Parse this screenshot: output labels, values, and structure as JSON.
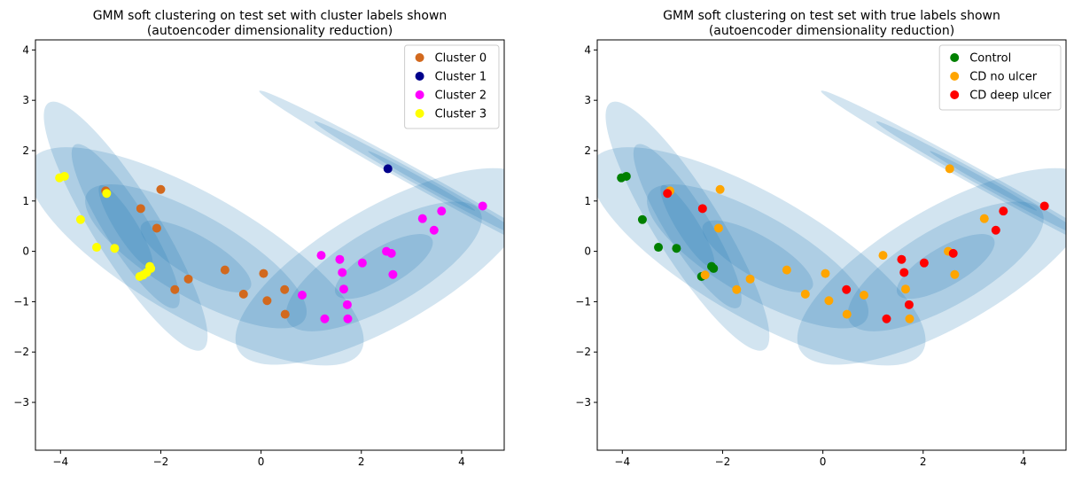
{
  "chart_data": [
    {
      "type": "scatter",
      "title": "GMM soft clustering on test set with cluster labels shown",
      "subtitle": "(autoencoder dimensionality reduction)",
      "xlabel": "",
      "ylabel": "",
      "xlim": [
        -4.5,
        4.85
      ],
      "ylim": [
        -3.95,
        4.2
      ],
      "xticks": [
        -4,
        -2,
        0,
        2,
        4
      ],
      "yticks": [
        -3,
        -2,
        -1,
        0,
        1,
        2,
        3,
        4
      ],
      "legend_position": "top-right",
      "series": [
        {
          "name": "Cluster 0",
          "color": "#d2691e",
          "points": [
            [
              -3.1,
              1.2
            ],
            [
              -2.4,
              0.85
            ],
            [
              -2.0,
              1.23
            ],
            [
              -2.08,
              0.46
            ],
            [
              -1.72,
              -0.76
            ],
            [
              -1.45,
              -0.55
            ],
            [
              -0.72,
              -0.37
            ],
            [
              -0.35,
              -0.85
            ],
            [
              0.05,
              -0.44
            ],
            [
              0.12,
              -0.98
            ],
            [
              0.47,
              -0.76
            ],
            [
              0.48,
              -1.25
            ]
          ]
        },
        {
          "name": "Cluster 1",
          "color": "#00008b",
          "points": [
            [
              2.53,
              1.64
            ]
          ]
        },
        {
          "name": "Cluster 2",
          "color": "#ff00ff",
          "points": [
            [
              0.82,
              -0.87
            ],
            [
              1.2,
              -0.08
            ],
            [
              1.27,
              -1.34
            ],
            [
              1.57,
              -0.16
            ],
            [
              1.62,
              -0.42
            ],
            [
              1.65,
              -0.75
            ],
            [
              1.72,
              -1.06
            ],
            [
              1.73,
              -1.34
            ],
            [
              2.02,
              -0.23
            ],
            [
              2.5,
              0.0
            ],
            [
              2.6,
              -0.04
            ],
            [
              2.63,
              -0.46
            ],
            [
              3.22,
              0.65
            ],
            [
              3.45,
              0.42
            ],
            [
              3.6,
              0.8
            ],
            [
              4.42,
              0.9
            ]
          ]
        },
        {
          "name": "Cluster 3",
          "color": "#ffff00",
          "points": [
            [
              -4.02,
              1.46
            ],
            [
              -3.92,
              1.49
            ],
            [
              -3.6,
              0.63
            ],
            [
              -3.28,
              0.08
            ],
            [
              -3.08,
              1.15
            ],
            [
              -2.92,
              0.06
            ],
            [
              -2.42,
              -0.5
            ],
            [
              -2.35,
              -0.47
            ],
            [
              -2.28,
              -0.42
            ],
            [
              -2.22,
              -0.3
            ],
            [
              -2.2,
              -0.34
            ]
          ]
        }
      ],
      "ellipses": [
        {
          "cx": -2.7,
          "cy": 0.5,
          "rx": 2.9,
          "ry": 0.65,
          "angle": -58
        },
        {
          "cx": -1.3,
          "cy": -0.1,
          "rx": 3.8,
          "ry": 1.22,
          "angle": -30
        },
        {
          "cx": 2.45,
          "cy": -0.3,
          "rx": 3.35,
          "ry": 1.17,
          "angle": 30
        },
        {
          "cx": 3.2,
          "cy": 1.4,
          "rx": 3.7,
          "ry": 0.17,
          "angle": -29
        }
      ]
    },
    {
      "type": "scatter",
      "title": "GMM soft clustering on test set with true labels shown",
      "subtitle": "(autoencoder dimensionality reduction)",
      "xlabel": "",
      "ylabel": "",
      "xlim": [
        -4.5,
        4.85
      ],
      "ylim": [
        -3.95,
        4.2
      ],
      "xticks": [
        -4,
        -2,
        0,
        2,
        4
      ],
      "yticks": [
        -3,
        -2,
        -1,
        0,
        1,
        2,
        3,
        4
      ],
      "legend_position": "top-right",
      "series": [
        {
          "name": "Control",
          "color": "#008000",
          "points": [
            [
              -4.02,
              1.46
            ],
            [
              -3.92,
              1.49
            ],
            [
              -3.6,
              0.63
            ],
            [
              -3.28,
              0.08
            ],
            [
              -2.92,
              0.06
            ],
            [
              -2.42,
              -0.5
            ],
            [
              -2.22,
              -0.3
            ],
            [
              -2.18,
              -0.34
            ]
          ]
        },
        {
          "name": "CD no ulcer",
          "color": "#ffa500",
          "points": [
            [
              -3.05,
              1.2
            ],
            [
              -2.35,
              -0.47
            ],
            [
              -2.05,
              1.23
            ],
            [
              -2.08,
              0.46
            ],
            [
              -1.72,
              -0.76
            ],
            [
              -1.45,
              -0.55
            ],
            [
              -0.72,
              -0.37
            ],
            [
              -0.35,
              -0.85
            ],
            [
              0.05,
              -0.44
            ],
            [
              0.12,
              -0.98
            ],
            [
              0.48,
              -1.25
            ],
            [
              0.82,
              -0.87
            ],
            [
              1.2,
              -0.08
            ],
            [
              1.65,
              -0.75
            ],
            [
              1.73,
              -1.34
            ],
            [
              2.5,
              0.0
            ],
            [
              2.53,
              1.64
            ],
            [
              2.63,
              -0.46
            ],
            [
              3.22,
              0.65
            ]
          ]
        },
        {
          "name": "CD deep ulcer",
          "color": "#ff0000",
          "points": [
            [
              -3.1,
              1.15
            ],
            [
              -2.4,
              0.85
            ],
            [
              0.47,
              -0.76
            ],
            [
              1.27,
              -1.34
            ],
            [
              1.57,
              -0.16
            ],
            [
              1.62,
              -0.42
            ],
            [
              1.72,
              -1.06
            ],
            [
              2.02,
              -0.23
            ],
            [
              2.6,
              -0.04
            ],
            [
              3.45,
              0.42
            ],
            [
              3.6,
              0.8
            ],
            [
              4.42,
              0.9
            ]
          ]
        }
      ],
      "ellipses": [
        {
          "cx": -2.7,
          "cy": 0.5,
          "rx": 2.9,
          "ry": 0.65,
          "angle": -58
        },
        {
          "cx": -1.3,
          "cy": -0.1,
          "rx": 3.8,
          "ry": 1.22,
          "angle": -30
        },
        {
          "cx": 2.45,
          "cy": -0.3,
          "rx": 3.35,
          "ry": 1.17,
          "angle": 30
        },
        {
          "cx": 3.2,
          "cy": 1.4,
          "rx": 3.7,
          "ry": 0.17,
          "angle": -29
        }
      ]
    }
  ]
}
